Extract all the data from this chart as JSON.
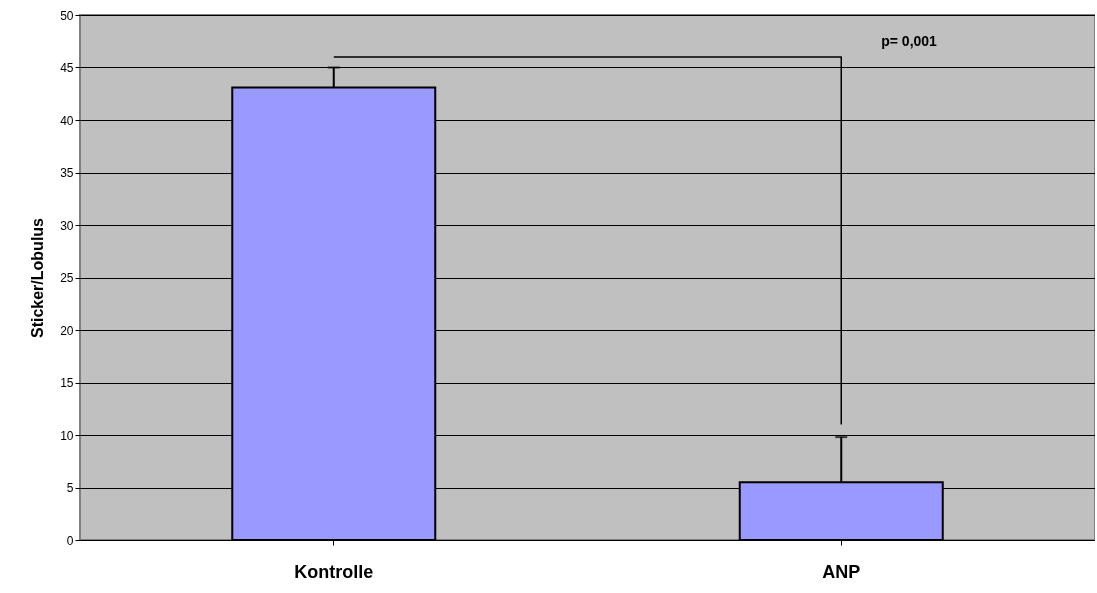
{
  "chart_data": {
    "type": "bar",
    "ylabel": "Sticker/Lobulus",
    "categories": [
      "Kontrolle",
      "ANP"
    ],
    "series": [
      {
        "color": "#9999ff",
        "values": [
          43.1,
          5.5
        ],
        "errors": [
          [
            43.1,
            45
          ],
          [
            5.5,
            9.8
          ]
        ]
      },
      {
        "type": "line",
        "color": "#000000",
        "x": [
          "Kontrolle",
          "ANP",
          "ANP"
        ],
        "values": [
          46,
          46,
          11
        ]
      }
    ],
    "ylim": [
      0,
      50
    ],
    "yticks": [
      0,
      5,
      10,
      15,
      20,
      25,
      30,
      35,
      40,
      45,
      50
    ],
    "grid": "y",
    "annotations": [
      "p= 0,001"
    ]
  }
}
